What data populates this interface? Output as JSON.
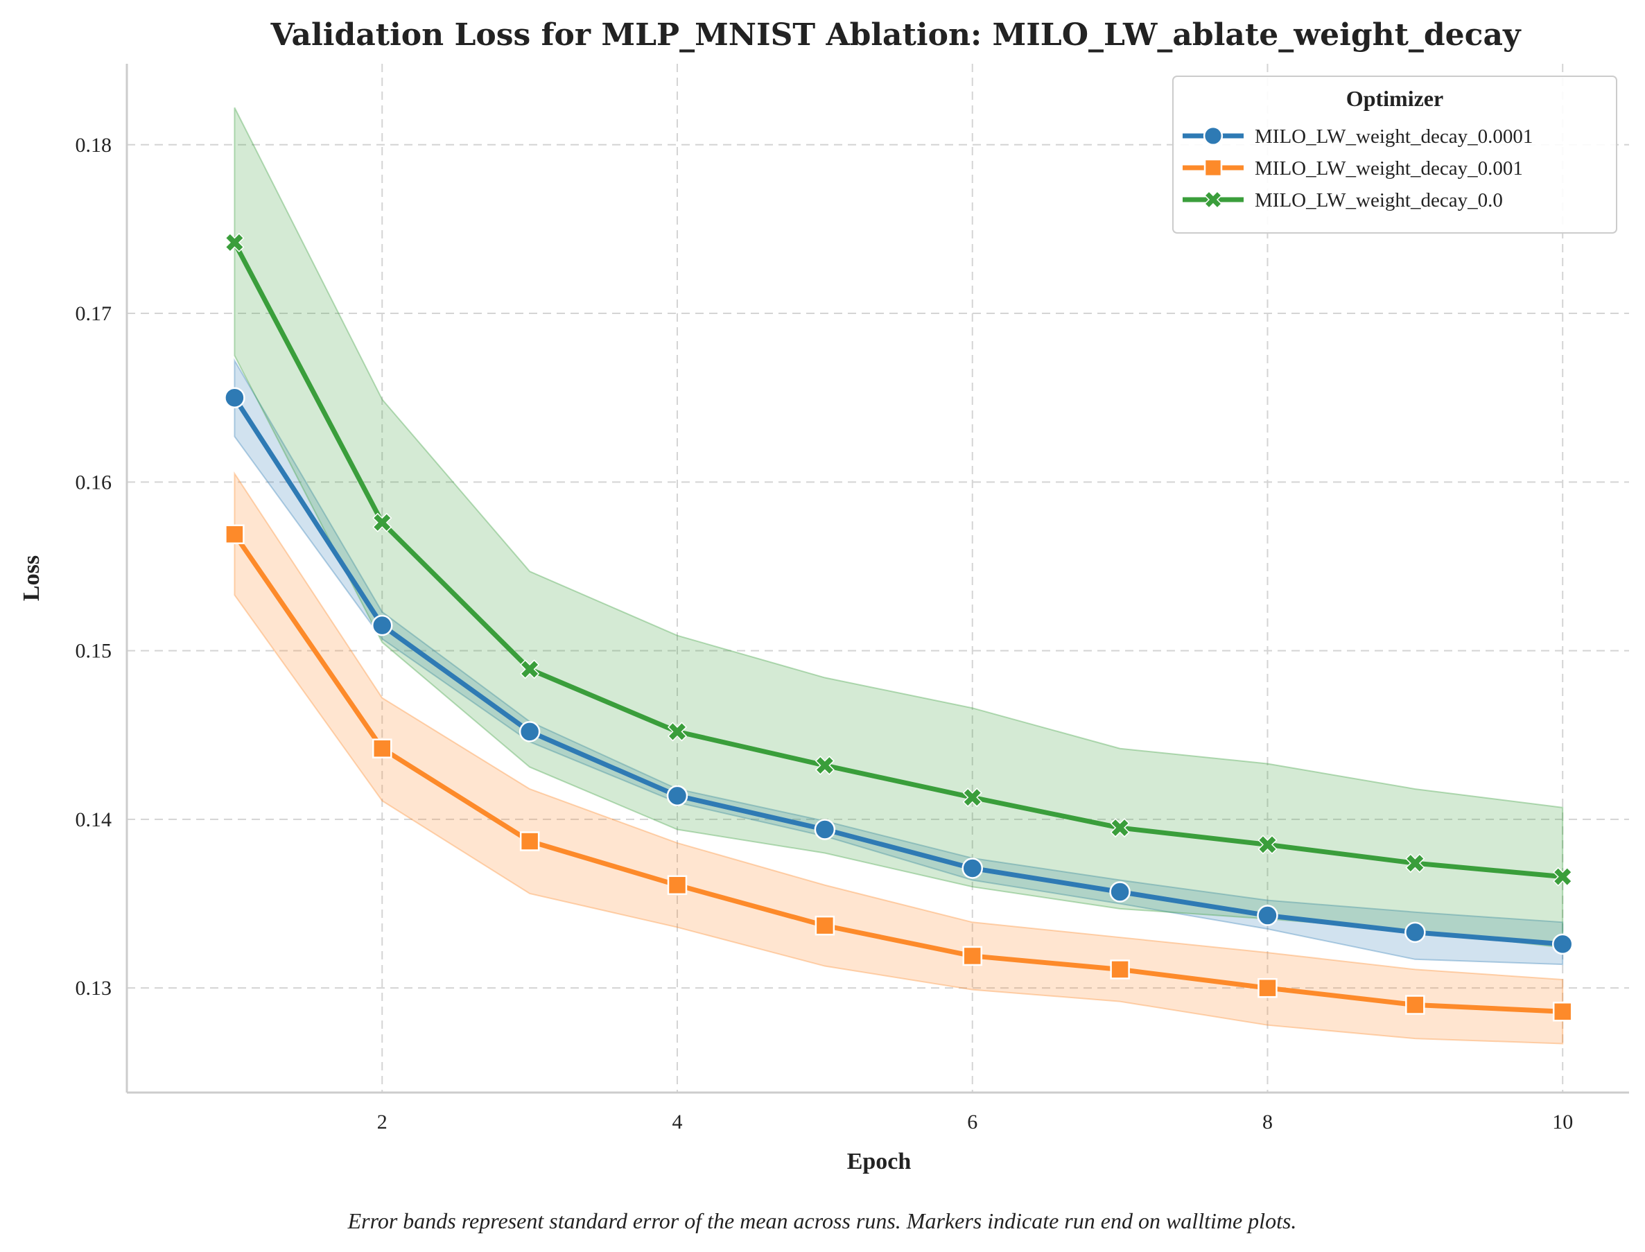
{
  "chart_data": {
    "type": "line",
    "title": "Validation Loss for MLP_MNIST Ablation: MILO_LW_ablate_weight_decay",
    "xlabel": "Epoch",
    "ylabel": "Loss",
    "xlim": [
      0.27,
      10.45
    ],
    "ylim": [
      0.1238,
      0.1848
    ],
    "xticks": [
      2,
      4,
      6,
      8,
      10
    ],
    "xtick_labels": [
      "2",
      "4",
      "6",
      "8",
      "10"
    ],
    "yticks": [
      0.13,
      0.14,
      0.15,
      0.16,
      0.17,
      0.18
    ],
    "ytick_labels": [
      "0.13",
      "0.14",
      "0.15",
      "0.16",
      "0.17",
      "0.18"
    ],
    "grid": true,
    "legend": {
      "title": "Optimizer",
      "placement": "top-right"
    },
    "x": [
      1,
      2,
      3,
      4,
      5,
      6,
      7,
      8,
      9,
      10
    ],
    "series": [
      {
        "name": "MILO_LW_weight_decay_0.0001",
        "color": "#2e7ab4",
        "marker": "circle",
        "values": [
          0.165,
          0.1515,
          0.1452,
          0.1414,
          0.1394,
          0.1371,
          0.1357,
          0.1343,
          0.1333,
          0.1326
        ],
        "lower": [
          0.1627,
          0.1507,
          0.1446,
          0.141,
          0.139,
          0.1364,
          0.135,
          0.1335,
          0.1317,
          0.1314
        ],
        "upper": [
          0.1672,
          0.1523,
          0.1458,
          0.1418,
          0.1399,
          0.1377,
          0.1364,
          0.1352,
          0.1345,
          0.1339
        ]
      },
      {
        "name": "MILO_LW_weight_decay_0.001",
        "color": "#fd8a2a",
        "marker": "square",
        "values": [
          0.1569,
          0.1442,
          0.1387,
          0.1361,
          0.1337,
          0.1319,
          0.1311,
          0.13,
          0.129,
          0.1286
        ],
        "lower": [
          0.1533,
          0.1411,
          0.1356,
          0.1336,
          0.1313,
          0.1299,
          0.1292,
          0.1278,
          0.127,
          0.1267
        ],
        "upper": [
          0.1605,
          0.1472,
          0.1418,
          0.1386,
          0.1361,
          0.1339,
          0.133,
          0.1321,
          0.1311,
          0.1305
        ]
      },
      {
        "name": "MILO_LW_weight_decay_0.0",
        "color": "#3a9e3b",
        "marker": "x",
        "values": [
          0.1742,
          0.1576,
          0.1489,
          0.1452,
          0.1432,
          0.1413,
          0.1395,
          0.1385,
          0.1374,
          0.1366
        ],
        "lower": [
          0.1675,
          0.1505,
          0.1431,
          0.1394,
          0.138,
          0.136,
          0.1347,
          0.1341,
          0.1334,
          0.1324
        ],
        "upper": [
          0.1822,
          0.1649,
          0.1547,
          0.1509,
          0.1484,
          0.1466,
          0.1442,
          0.1433,
          0.1418,
          0.1407
        ]
      }
    ]
  },
  "caption": "Error bands represent standard error of the mean across runs. Markers indicate run end on walltime plots."
}
